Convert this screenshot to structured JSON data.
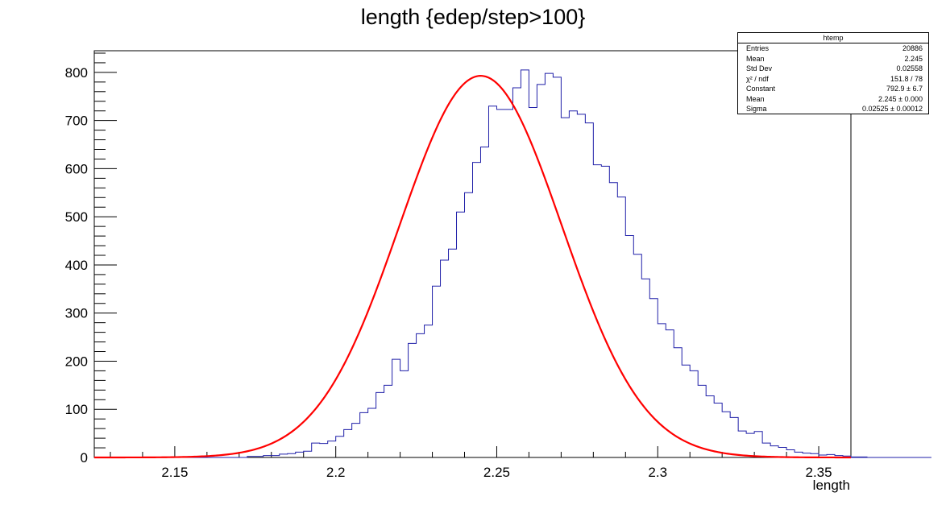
{
  "chart_data": {
    "type": "histogram",
    "title": "length {edep/step>100}",
    "xlabel": "length",
    "ylabel": "",
    "xlim": [
      2.125,
      2.36
    ],
    "ylim": [
      0,
      845
    ],
    "x_ticks": [
      "2.15",
      "2.2",
      "2.25",
      "2.3",
      "2.35"
    ],
    "y_ticks": [
      "0",
      "100",
      "200",
      "300",
      "400",
      "500",
      "600",
      "700",
      "800"
    ],
    "bin_width": 0.0025,
    "bin_start": 2.1375,
    "counts": [
      0,
      0,
      0,
      0,
      0,
      0,
      0,
      0,
      0,
      0,
      0,
      0,
      0,
      0,
      2,
      2,
      4,
      4,
      7,
      8,
      11,
      13,
      30,
      29,
      34,
      44,
      58,
      71,
      93,
      102,
      135,
      150,
      204,
      180,
      237,
      257,
      275,
      356,
      410,
      433,
      510,
      550,
      613,
      645,
      730,
      723,
      723,
      768,
      805,
      727,
      775,
      798,
      790,
      706,
      720,
      713,
      695,
      608,
      605,
      571,
      541,
      461,
      422,
      371,
      330,
      278,
      265,
      228,
      192,
      180,
      150,
      128,
      113,
      95,
      83,
      55,
      50,
      54,
      30,
      24,
      21,
      16,
      11,
      9,
      8,
      5,
      6,
      4,
      3,
      1,
      1,
      0,
      0,
      0,
      0,
      0,
      0,
      0,
      0
    ],
    "fit": {
      "type": "gaussian",
      "constant": 792.9,
      "mean": 2.245,
      "sigma": 0.02525
    },
    "hist_color": "#1f1fa8",
    "fit_color": "#ff0000",
    "stats_box": {
      "name": "htemp",
      "rows": [
        {
          "label": "Entries",
          "value": "20886"
        },
        {
          "label": "Mean",
          "value": "2.245"
        },
        {
          "label": "Std Dev",
          "value": "0.02558"
        },
        {
          "label": "χ² / ndf",
          "value": "151.8 / 78"
        },
        {
          "label": "Constant",
          "value": "792.9 ± 6.7"
        },
        {
          "label": "Mean",
          "value": "2.245 ± 0.000"
        },
        {
          "label": "Sigma",
          "value": "0.02525 ± 0.00012"
        }
      ]
    }
  }
}
